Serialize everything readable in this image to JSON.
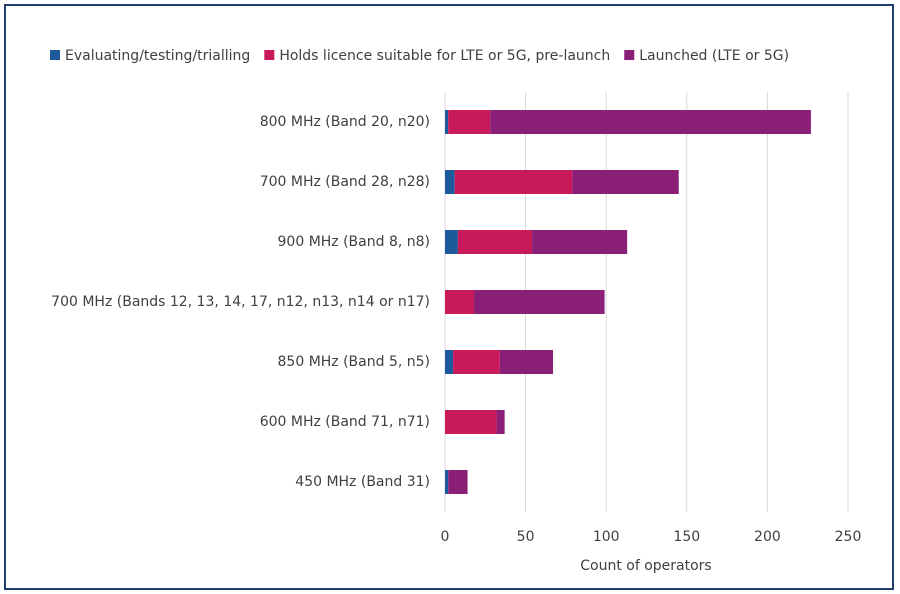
{
  "chart_data": {
    "type": "stacked-bar-horizontal",
    "categories": [
      "800 MHz (Band 20, n20)",
      "700 MHz (Band 28, n28)",
      "900 MHz (Band 8, n8)",
      "700 MHz (Bands 12, 13, 14, 17, n12, n13, n14 or n17)",
      "850 MHz (Band 5, n5)",
      "600 MHz (Band 71, n71)",
      "450 MHz (Band 31)"
    ],
    "series": [
      {
        "name": "Evaluating/testing/trialling",
        "color": "#1d5a9c",
        "values": [
          2,
          6,
          8,
          0,
          5,
          0,
          2
        ]
      },
      {
        "name": "Holds licence suitable for LTE or 5G, pre-launch",
        "color": "#c8195a",
        "values": [
          26,
          73,
          46,
          18,
          29,
          32,
          0
        ]
      },
      {
        "name": "Launched (LTE or 5G)",
        "color": "#8b1f78",
        "values": [
          199,
          66,
          59,
          81,
          33,
          5,
          12
        ]
      }
    ],
    "xlabel": "Count of operators",
    "xlim": [
      0,
      250
    ],
    "xticks": [
      0,
      50,
      100,
      150,
      200,
      250
    ],
    "grid": true,
    "legend": "top"
  }
}
